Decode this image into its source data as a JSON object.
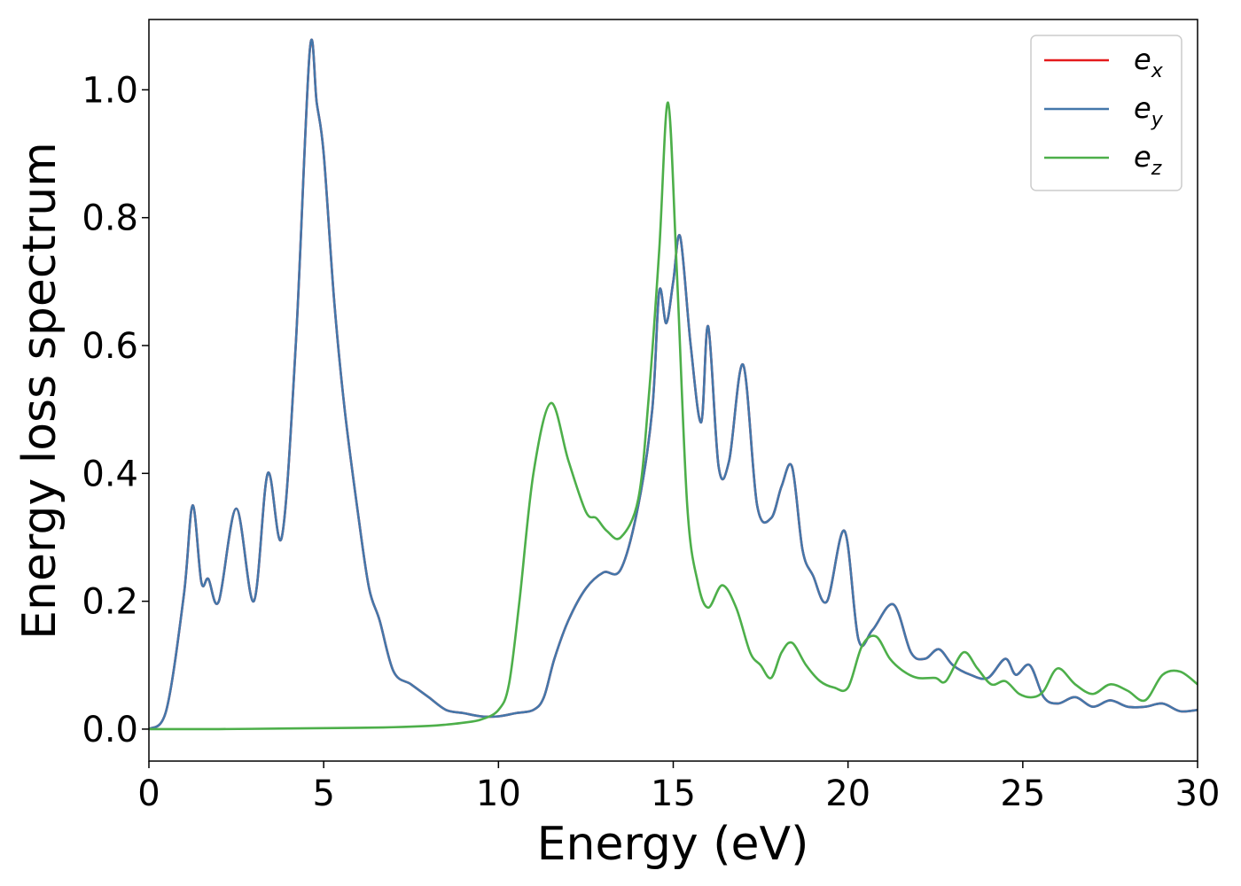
{
  "chart_data": {
    "type": "line",
    "title": "",
    "xlabel": "Energy (eV)",
    "ylabel": "Energy loss spectrum",
    "xlim": [
      0,
      30
    ],
    "ylim": [
      -0.05,
      1.11
    ],
    "xticks": [
      0,
      5,
      10,
      15,
      20,
      25,
      30
    ],
    "yticks": [
      0.0,
      0.2,
      0.4,
      0.6,
      0.8,
      1.0
    ],
    "grid": false,
    "legend_position": "top-right",
    "series": [
      {
        "name": "e",
        "subscript": "x",
        "color": "#e41a1c",
        "x": [
          0,
          0.5,
          1,
          1.25,
          1.5,
          1.7,
          2,
          2.5,
          3,
          3.4,
          3.8,
          4.2,
          4.6,
          4.8,
          5,
          5.3,
          5.6,
          6,
          6.3,
          6.6,
          7,
          7.5,
          8,
          8.5,
          9,
          9.5,
          10,
          10.5,
          11,
          11.3,
          11.6,
          12,
          12.5,
          13,
          13.5,
          14,
          14.4,
          14.6,
          14.8,
          15,
          15.2,
          15.5,
          15.8,
          16,
          16.3,
          16.6,
          17,
          17.4,
          17.8,
          18.1,
          18.4,
          18.7,
          19,
          19.4,
          19.9,
          20.3,
          20.7,
          21.3,
          21.8,
          22.2,
          22.6,
          23,
          23.5,
          24,
          24.5,
          24.8,
          25.2,
          25.6,
          26,
          26.5,
          27,
          27.5,
          28,
          28.5,
          29,
          29.5,
          30
        ],
        "y": [
          0,
          0.03,
          0.21,
          0.35,
          0.23,
          0.235,
          0.2,
          0.345,
          0.2,
          0.4,
          0.3,
          0.6,
          1.06,
          0.98,
          0.9,
          0.67,
          0.5,
          0.33,
          0.22,
          0.17,
          0.09,
          0.07,
          0.05,
          0.03,
          0.025,
          0.02,
          0.02,
          0.025,
          0.03,
          0.05,
          0.11,
          0.17,
          0.22,
          0.245,
          0.25,
          0.35,
          0.5,
          0.685,
          0.635,
          0.7,
          0.77,
          0.6,
          0.48,
          0.63,
          0.41,
          0.42,
          0.57,
          0.35,
          0.33,
          0.38,
          0.41,
          0.28,
          0.24,
          0.2,
          0.31,
          0.14,
          0.155,
          0.195,
          0.12,
          0.11,
          0.125,
          0.1,
          0.085,
          0.08,
          0.11,
          0.085,
          0.1,
          0.05,
          0.04,
          0.05,
          0.035,
          0.045,
          0.035,
          0.035,
          0.04,
          0.028,
          0.03
        ]
      },
      {
        "name": "e",
        "subscript": "y",
        "color": "#4477aa",
        "x": [
          0,
          0.5,
          1,
          1.25,
          1.5,
          1.7,
          2,
          2.5,
          3,
          3.4,
          3.8,
          4.2,
          4.6,
          4.8,
          5,
          5.3,
          5.6,
          6,
          6.3,
          6.6,
          7,
          7.5,
          8,
          8.5,
          9,
          9.5,
          10,
          10.5,
          11,
          11.3,
          11.6,
          12,
          12.5,
          13,
          13.5,
          14,
          14.4,
          14.6,
          14.8,
          15,
          15.2,
          15.5,
          15.8,
          16,
          16.3,
          16.6,
          17,
          17.4,
          17.8,
          18.1,
          18.4,
          18.7,
          19,
          19.4,
          19.9,
          20.3,
          20.7,
          21.3,
          21.8,
          22.2,
          22.6,
          23,
          23.5,
          24,
          24.5,
          24.8,
          25.2,
          25.6,
          26,
          26.5,
          27,
          27.5,
          28,
          28.5,
          29,
          29.5,
          30
        ],
        "y": [
          0,
          0.03,
          0.21,
          0.35,
          0.23,
          0.235,
          0.2,
          0.345,
          0.2,
          0.4,
          0.3,
          0.6,
          1.06,
          0.98,
          0.9,
          0.67,
          0.5,
          0.33,
          0.22,
          0.17,
          0.09,
          0.07,
          0.05,
          0.03,
          0.025,
          0.02,
          0.02,
          0.025,
          0.03,
          0.05,
          0.11,
          0.17,
          0.22,
          0.245,
          0.25,
          0.35,
          0.5,
          0.685,
          0.635,
          0.7,
          0.77,
          0.6,
          0.48,
          0.63,
          0.41,
          0.42,
          0.57,
          0.35,
          0.33,
          0.38,
          0.41,
          0.28,
          0.24,
          0.2,
          0.31,
          0.14,
          0.155,
          0.195,
          0.12,
          0.11,
          0.125,
          0.1,
          0.085,
          0.08,
          0.11,
          0.085,
          0.1,
          0.05,
          0.04,
          0.05,
          0.035,
          0.045,
          0.035,
          0.035,
          0.04,
          0.028,
          0.03
        ]
      },
      {
        "name": "e",
        "subscript": "z",
        "color": "#4daf4a",
        "x": [
          0,
          2,
          4,
          6,
          7,
          8,
          8.5,
          9,
          9.5,
          10,
          10.3,
          10.6,
          11,
          11.5,
          12,
          12.5,
          12.8,
          13.1,
          13.5,
          14,
          14.3,
          14.6,
          14.85,
          15.1,
          15.4,
          15.7,
          16,
          16.4,
          16.8,
          17.2,
          17.5,
          17.8,
          18.1,
          18.4,
          18.8,
          19.2,
          19.6,
          20,
          20.4,
          20.8,
          21.2,
          21.6,
          22,
          22.5,
          22.8,
          23.3,
          23.7,
          24.1,
          24.5,
          24.9,
          25.3,
          25.6,
          26,
          26.5,
          27,
          27.5,
          28,
          28.5,
          29,
          29.5,
          30
        ],
        "y": [
          0,
          0,
          0.001,
          0.002,
          0.003,
          0.005,
          0.007,
          0.01,
          0.015,
          0.03,
          0.07,
          0.2,
          0.4,
          0.51,
          0.42,
          0.34,
          0.33,
          0.31,
          0.3,
          0.36,
          0.52,
          0.75,
          0.98,
          0.72,
          0.35,
          0.23,
          0.19,
          0.225,
          0.19,
          0.12,
          0.1,
          0.08,
          0.12,
          0.135,
          0.1,
          0.075,
          0.065,
          0.065,
          0.13,
          0.145,
          0.11,
          0.09,
          0.08,
          0.08,
          0.075,
          0.12,
          0.095,
          0.07,
          0.075,
          0.055,
          0.05,
          0.06,
          0.095,
          0.07,
          0.055,
          0.07,
          0.06,
          0.045,
          0.085,
          0.09,
          0.07
        ]
      }
    ]
  }
}
